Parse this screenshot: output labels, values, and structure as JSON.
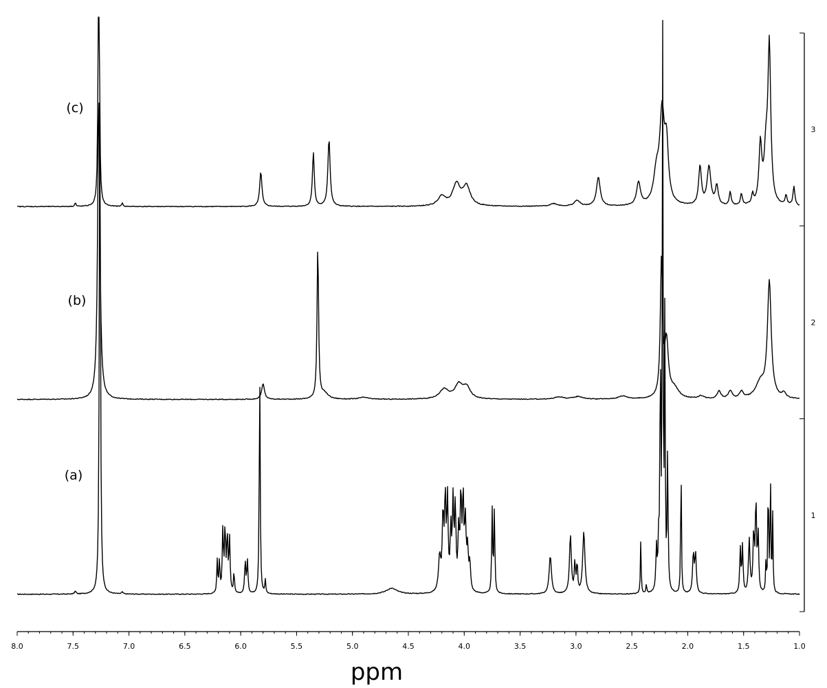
{
  "chart_data": {
    "type": "line",
    "title": "",
    "xlabel": "ppm",
    "ylabel": "",
    "xlim": [
      8.0,
      1.0
    ],
    "x_reversed": true,
    "ylim": [
      0,
      3
    ],
    "grid": false,
    "legend": "none",
    "x_ticks": [
      "8.0",
      "7.5",
      "7.0",
      "6.5",
      "6.0",
      "5.5",
      "5.0",
      "4.5",
      "4.0",
      "3.5",
      "3.0",
      "2.5",
      "2.0",
      "1.5",
      "1.0"
    ],
    "y_ticks": [
      "1",
      "2",
      "3"
    ],
    "series": [
      {
        "name": "(a)",
        "baseline": 0.09,
        "peaks": [
          [
            7.48,
            0.015,
            0.008
          ],
          [
            7.26,
            2.7,
            0.006
          ],
          [
            7.06,
            0.01,
            0.008
          ],
          [
            6.21,
            0.17,
            0.005
          ],
          [
            6.19,
            0.17,
            0.005
          ],
          [
            6.16,
            0.32,
            0.006
          ],
          [
            6.14,
            0.33,
            0.006
          ],
          [
            6.12,
            0.29,
            0.006
          ],
          [
            6.1,
            0.28,
            0.006
          ],
          [
            6.06,
            0.11,
            0.005
          ],
          [
            5.96,
            0.17,
            0.006
          ],
          [
            5.94,
            0.17,
            0.006
          ],
          [
            5.83,
            1.15,
            0.005
          ],
          [
            5.78,
            0.07,
            0.005
          ],
          [
            4.65,
            0.03,
            0.06
          ],
          [
            4.22,
            0.18,
            0.012
          ],
          [
            4.19,
            0.38,
            0.008
          ],
          [
            4.17,
            0.46,
            0.007
          ],
          [
            4.15,
            0.46,
            0.007
          ],
          [
            4.12,
            0.3,
            0.007
          ],
          [
            4.1,
            0.44,
            0.007
          ],
          [
            4.08,
            0.42,
            0.007
          ],
          [
            4.05,
            0.29,
            0.007
          ],
          [
            4.03,
            0.48,
            0.007
          ],
          [
            4.01,
            0.46,
            0.007
          ],
          [
            3.99,
            0.34,
            0.008
          ],
          [
            3.97,
            0.2,
            0.008
          ],
          [
            3.95,
            0.14,
            0.008
          ],
          [
            3.75,
            0.43,
            0.005
          ],
          [
            3.73,
            0.43,
            0.005
          ],
          [
            3.23,
            0.2,
            0.012
          ],
          [
            3.05,
            0.3,
            0.01
          ],
          [
            3.01,
            0.15,
            0.006
          ],
          [
            2.99,
            0.15,
            0.006
          ],
          [
            2.93,
            0.32,
            0.012
          ],
          [
            2.42,
            0.28,
            0.004
          ],
          [
            2.37,
            0.05,
            0.004
          ],
          [
            2.28,
            0.22,
            0.006
          ],
          [
            2.26,
            0.25,
            0.006
          ],
          [
            2.245,
            1.33,
            0.004
          ],
          [
            2.225,
            3.0,
            0.004
          ],
          [
            2.205,
            1.4,
            0.004
          ],
          [
            2.18,
            0.7,
            0.005
          ],
          [
            2.06,
            0.7,
            0.004
          ],
          [
            1.95,
            0.2,
            0.008
          ],
          [
            1.93,
            0.2,
            0.008
          ],
          [
            1.53,
            0.23,
            0.006
          ],
          [
            1.51,
            0.24,
            0.006
          ],
          [
            1.45,
            0.28,
            0.008
          ],
          [
            1.41,
            0.3,
            0.007
          ],
          [
            1.39,
            0.48,
            0.006
          ],
          [
            1.37,
            0.3,
            0.006
          ],
          [
            1.3,
            0.16,
            0.004
          ],
          [
            1.28,
            0.64,
            0.004
          ],
          [
            1.26,
            0.62,
            0.004
          ],
          [
            1.24,
            0.4,
            0.004
          ]
        ]
      },
      {
        "name": "(b)",
        "baseline": 1.1,
        "peaks": [
          [
            7.27,
            1.58,
            0.012
          ],
          [
            5.8,
            0.08,
            0.015
          ],
          [
            5.31,
            0.8,
            0.008
          ],
          [
            5.25,
            0.03,
            0.04
          ],
          [
            4.9,
            0.01,
            0.05
          ],
          [
            4.18,
            0.05,
            0.05
          ],
          [
            4.05,
            0.07,
            0.04
          ],
          [
            3.98,
            0.06,
            0.04
          ],
          [
            3.15,
            0.012,
            0.05
          ],
          [
            2.98,
            0.014,
            0.05
          ],
          [
            2.58,
            0.016,
            0.05
          ],
          [
            2.235,
            0.7,
            0.012
          ],
          [
            2.19,
            0.28,
            0.02
          ],
          [
            2.12,
            0.05,
            0.05
          ],
          [
            1.88,
            0.015,
            0.03
          ],
          [
            1.72,
            0.04,
            0.02
          ],
          [
            1.62,
            0.04,
            0.02
          ],
          [
            1.52,
            0.035,
            0.02
          ],
          [
            1.27,
            0.6,
            0.02
          ],
          [
            1.35,
            0.08,
            0.05
          ],
          [
            1.14,
            0.025,
            0.02
          ]
        ]
      },
      {
        "name": "(c)",
        "baseline": 2.1,
        "peaks": [
          [
            7.48,
            0.02,
            0.006
          ],
          [
            7.27,
            2.4,
            0.005
          ],
          [
            7.06,
            0.02,
            0.006
          ],
          [
            5.82,
            0.18,
            0.012
          ],
          [
            5.35,
            0.28,
            0.01
          ],
          [
            5.21,
            0.35,
            0.012
          ],
          [
            4.2,
            0.05,
            0.04
          ],
          [
            4.07,
            0.11,
            0.04
          ],
          [
            3.98,
            0.1,
            0.04
          ],
          [
            3.2,
            0.014,
            0.04
          ],
          [
            2.99,
            0.03,
            0.03
          ],
          [
            2.8,
            0.15,
            0.02
          ],
          [
            2.44,
            0.12,
            0.02
          ],
          [
            2.23,
            0.45,
            0.025
          ],
          [
            2.19,
            0.28,
            0.02
          ],
          [
            2.28,
            0.15,
            0.03
          ],
          [
            1.89,
            0.2,
            0.015
          ],
          [
            1.81,
            0.2,
            0.02
          ],
          [
            1.74,
            0.1,
            0.015
          ],
          [
            1.62,
            0.07,
            0.01
          ],
          [
            1.52,
            0.06,
            0.01
          ],
          [
            1.42,
            0.05,
            0.01
          ],
          [
            1.35,
            0.3,
            0.015
          ],
          [
            1.27,
            0.8,
            0.015
          ],
          [
            1.3,
            0.25,
            0.02
          ],
          [
            1.12,
            0.05,
            0.01
          ],
          [
            1.05,
            0.1,
            0.01
          ]
        ]
      }
    ]
  }
}
